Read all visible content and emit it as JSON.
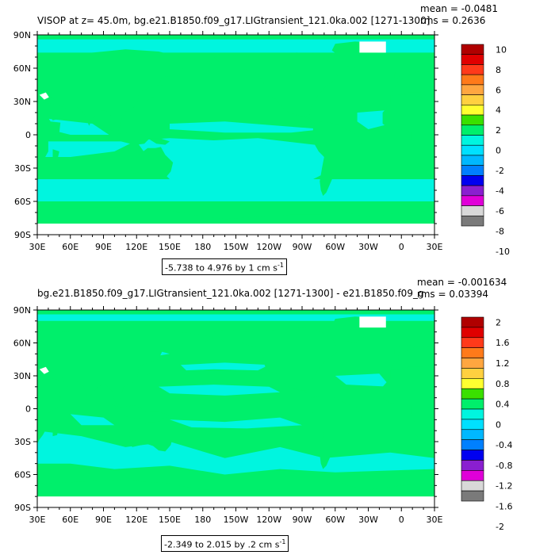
{
  "colors": {
    "bg_land": "#ffffff",
    "ocean_main": "#00ef6b",
    "ocean_alt": "#00f5df",
    "ice": "#ffffff"
  },
  "chart_data": [
    {
      "type": "heatmap",
      "title": "VISOP at z=  45.0m, bg.e21.B1850.f09_g17.LIGtransient_121.0ka.002 [1271-1300]",
      "stat_mean": "mean = -0.0481",
      "stat_rms": "rms = 0.2636",
      "x_ticks": [
        "30E",
        "60E",
        "90E",
        "120E",
        "150E",
        "180",
        "150W",
        "120W",
        "90W",
        "60W",
        "30W",
        "0",
        "30E"
      ],
      "y_ticks": [
        "90N",
        "60N",
        "30N",
        "0",
        "30S",
        "60S",
        "90S"
      ],
      "range_text": "-5.738 to 4.976 by 1 cm s",
      "range_unit_sup": "-1",
      "colorbar_labels": [
        "10",
        "8",
        "6",
        "4",
        "2",
        "0",
        "-2",
        "-4",
        "-6",
        "-8",
        "-10"
      ],
      "colorbar_colors": [
        "#b00000",
        "#e00000",
        "#ff3a1a",
        "#ff7a1a",
        "#ffa640",
        "#ffd040",
        "#ffff30",
        "#3ae000",
        "#00ef6b",
        "#00f5df",
        "#00e0ff",
        "#00b8ff",
        "#0080ff",
        "#0000f0",
        "#8a1fd0",
        "#e000d8",
        "#d8d8d8",
        "#7a7a7a"
      ],
      "value_range": [
        -5.738,
        4.976
      ],
      "contour_interval": 1
    },
    {
      "type": "heatmap",
      "title": "bg.e21.B1850.f09_g17.LIGtransient_121.0ka.002 [1271-1300] - e21.B1850.f09_g",
      "stat_mean": "mean = -0.001634",
      "stat_rms": "rms = 0.03394",
      "x_ticks": [
        "30E",
        "60E",
        "90E",
        "120E",
        "150E",
        "180",
        "150W",
        "120W",
        "90W",
        "60W",
        "30W",
        "0",
        "30E"
      ],
      "y_ticks": [
        "90N",
        "60N",
        "30N",
        "0",
        "30S",
        "60S",
        "90S"
      ],
      "range_text": "-2.349 to 2.015 by .2 cm s",
      "range_unit_sup": "-1",
      "colorbar_labels": [
        "2",
        "1.6",
        "1.2",
        "0.8",
        "0.4",
        "0",
        "-0.4",
        "-0.8",
        "-1.2",
        "-1.6",
        "-2"
      ],
      "colorbar_colors": [
        "#b00000",
        "#e00000",
        "#ff3a1a",
        "#ff7a1a",
        "#ffa640",
        "#ffd040",
        "#ffff30",
        "#3ae000",
        "#00ef6b",
        "#00f5df",
        "#00e0ff",
        "#00b8ff",
        "#0080ff",
        "#0000f0",
        "#8a1fd0",
        "#e000d8",
        "#d8d8d8",
        "#7a7a7a"
      ],
      "value_range": [
        -2.349,
        2.015
      ],
      "contour_interval": 0.2
    }
  ]
}
